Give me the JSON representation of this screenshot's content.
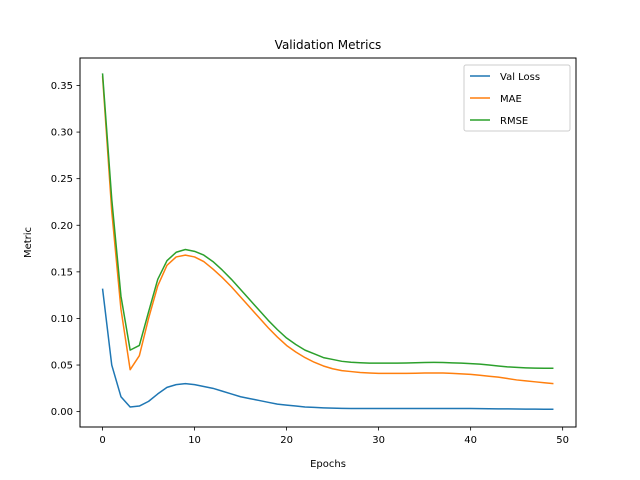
{
  "chart_data": {
    "type": "line",
    "title": "Validation Metrics",
    "xlabel": "Epochs",
    "ylabel": "Metric",
    "xlim": [
      -2.45,
      51.45
    ],
    "ylim": [
      -0.0165,
      0.3795
    ],
    "xticks": [
      0,
      10,
      20,
      30,
      40,
      50
    ],
    "xtick_labels": [
      "0",
      "10",
      "20",
      "30",
      "40",
      "50"
    ],
    "yticks": [
      0.0,
      0.05,
      0.1,
      0.15,
      0.2,
      0.25,
      0.3,
      0.35
    ],
    "ytick_labels": [
      "0.00",
      "0.05",
      "0.10",
      "0.15",
      "0.20",
      "0.25",
      "0.30",
      "0.35"
    ],
    "grid": false,
    "legend_position": "top-right",
    "x": [
      0,
      1,
      2,
      3,
      4,
      5,
      6,
      7,
      8,
      9,
      10,
      11,
      12,
      13,
      14,
      15,
      16,
      17,
      18,
      19,
      20,
      21,
      22,
      23,
      24,
      25,
      26,
      27,
      28,
      29,
      30,
      31,
      32,
      33,
      34,
      35,
      36,
      37,
      38,
      39,
      40,
      41,
      42,
      43,
      44,
      45,
      46,
      47,
      48,
      49
    ],
    "series": [
      {
        "name": "Val Loss",
        "color": "#1f77b4",
        "values": [
          0.132,
          0.05,
          0.016,
          0.005,
          0.006,
          0.011,
          0.019,
          0.026,
          0.029,
          0.03,
          0.029,
          0.027,
          0.025,
          0.022,
          0.019,
          0.016,
          0.014,
          0.012,
          0.01,
          0.008,
          0.007,
          0.006,
          0.005,
          0.0045,
          0.004,
          0.0037,
          0.0035,
          0.0034,
          0.0033,
          0.0033,
          0.0033,
          0.0033,
          0.0033,
          0.0033,
          0.0034,
          0.0034,
          0.0034,
          0.0034,
          0.0034,
          0.0033,
          0.0033,
          0.0032,
          0.0031,
          0.003,
          0.0029,
          0.0028,
          0.0027,
          0.0027,
          0.0026,
          0.0026
        ]
      },
      {
        "name": "MAE",
        "color": "#ff7f0e",
        "values": [
          0.36,
          0.215,
          0.11,
          0.045,
          0.06,
          0.1,
          0.135,
          0.157,
          0.166,
          0.168,
          0.166,
          0.161,
          0.153,
          0.144,
          0.134,
          0.123,
          0.112,
          0.101,
          0.09,
          0.08,
          0.071,
          0.064,
          0.058,
          0.053,
          0.049,
          0.046,
          0.044,
          0.043,
          0.042,
          0.0415,
          0.041,
          0.041,
          0.041,
          0.041,
          0.0412,
          0.0415,
          0.0415,
          0.0414,
          0.041,
          0.0405,
          0.04,
          0.039,
          0.038,
          0.037,
          0.0355,
          0.034,
          0.033,
          0.032,
          0.031,
          0.03
        ]
      },
      {
        "name": "RMSE",
        "color": "#2ca02c",
        "values": [
          0.363,
          0.228,
          0.124,
          0.066,
          0.071,
          0.107,
          0.142,
          0.162,
          0.171,
          0.174,
          0.172,
          0.168,
          0.161,
          0.152,
          0.142,
          0.131,
          0.12,
          0.109,
          0.098,
          0.088,
          0.079,
          0.072,
          0.066,
          0.062,
          0.058,
          0.056,
          0.054,
          0.053,
          0.0525,
          0.052,
          0.052,
          0.052,
          0.052,
          0.0522,
          0.0525,
          0.0527,
          0.0528,
          0.0527,
          0.0523,
          0.052,
          0.0515,
          0.051,
          0.05,
          0.049,
          0.048,
          0.0475,
          0.047,
          0.0467,
          0.0465,
          0.0465
        ]
      }
    ]
  }
}
